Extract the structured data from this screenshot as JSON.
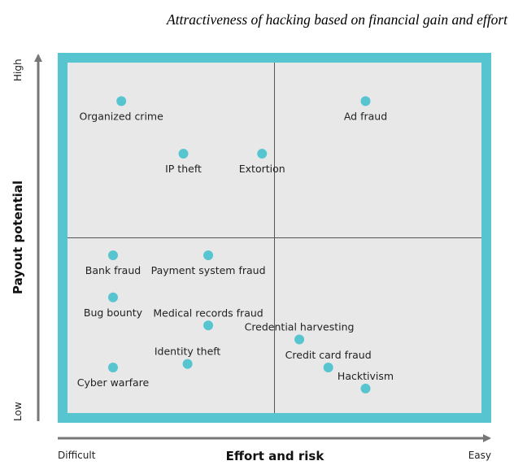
{
  "chart_data": {
    "type": "scatter",
    "title": "Attractiveness of hacking based on financial gain and effort",
    "xlabel": "Effort and risk",
    "ylabel": "Payout potential",
    "x_ends": [
      "Difficult",
      "Easy"
    ],
    "y_ends": [
      "Low",
      "High"
    ],
    "xlim": [
      0,
      10
    ],
    "ylim": [
      0,
      10
    ],
    "quadrant_split": {
      "x": 5,
      "y": 5
    },
    "colors": {
      "frame": "#56c5d0",
      "plot_bg": "#e8e8e9",
      "point": "#56c5d0",
      "divider": "#555555"
    },
    "points": [
      {
        "name": "Organized crime",
        "x": 1.3,
        "y": 8.9,
        "label_pos": "below"
      },
      {
        "name": "Ad fraud",
        "x": 7.2,
        "y": 8.9,
        "label_pos": "below"
      },
      {
        "name": "IP theft",
        "x": 2.8,
        "y": 7.4,
        "label_pos": "below"
      },
      {
        "name": "Extortion",
        "x": 4.7,
        "y": 7.4,
        "label_pos": "below"
      },
      {
        "name": "Bank fraud",
        "x": 1.1,
        "y": 4.5,
        "label_pos": "below"
      },
      {
        "name": "Payment system fraud",
        "x": 3.4,
        "y": 4.5,
        "label_pos": "below"
      },
      {
        "name": "Bug bounty",
        "x": 1.1,
        "y": 3.3,
        "label_pos": "below"
      },
      {
        "name": "Medical records fraud",
        "x": 3.4,
        "y": 2.5,
        "label_pos": "above"
      },
      {
        "name": "Credential harvesting",
        "x": 5.6,
        "y": 2.1,
        "label_pos": "above"
      },
      {
        "name": "Identity theft",
        "x": 2.9,
        "y": 1.4,
        "label_pos": "above"
      },
      {
        "name": "Credit card fraud",
        "x": 6.3,
        "y": 1.3,
        "label_pos": "above"
      },
      {
        "name": "Cyber warfare",
        "x": 1.1,
        "y": 1.3,
        "label_pos": "below"
      },
      {
        "name": "Hacktivism",
        "x": 7.2,
        "y": 0.7,
        "label_pos": "above"
      }
    ]
  }
}
